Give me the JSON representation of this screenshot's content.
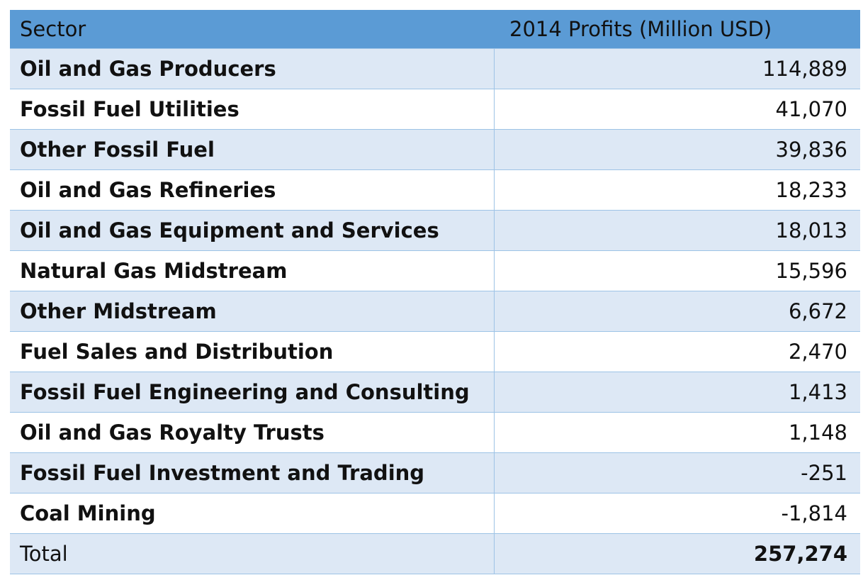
{
  "chart_data": {
    "type": "table",
    "columns": [
      "Sector",
      "2014 Profits (Million USD)"
    ],
    "rows": [
      {
        "sector": "Oil and Gas Producers",
        "value": "114,889"
      },
      {
        "sector": "Fossil Fuel Utilities",
        "value": "41,070"
      },
      {
        "sector": "Other Fossil Fuel",
        "value": "39,836"
      },
      {
        "sector": "Oil and Gas Refineries",
        "value": "18,233"
      },
      {
        "sector": "Oil and Gas Equipment and Services",
        "value": "18,013"
      },
      {
        "sector": "Natural Gas Midstream",
        "value": "15,596"
      },
      {
        "sector": "Other Midstream",
        "value": "6,672"
      },
      {
        "sector": "Fuel Sales and Distribution",
        "value": "2,470"
      },
      {
        "sector": "Fossil Fuel Engineering and Consulting",
        "value": "1,413"
      },
      {
        "sector": "Oil and Gas Royalty Trusts",
        "value": "1,148"
      },
      {
        "sector": "Fossil Fuel Investment and Trading",
        "value": "-251"
      },
      {
        "sector": "Coal Mining",
        "value": "-1,814"
      }
    ],
    "total": {
      "label": "Total",
      "value": "257,274"
    }
  },
  "colors": {
    "header_bg": "#5b9bd5",
    "band_bg": "#dde8f5",
    "row_bg": "#ffffff",
    "rule": "#9dc3e6",
    "text": "#111111"
  }
}
